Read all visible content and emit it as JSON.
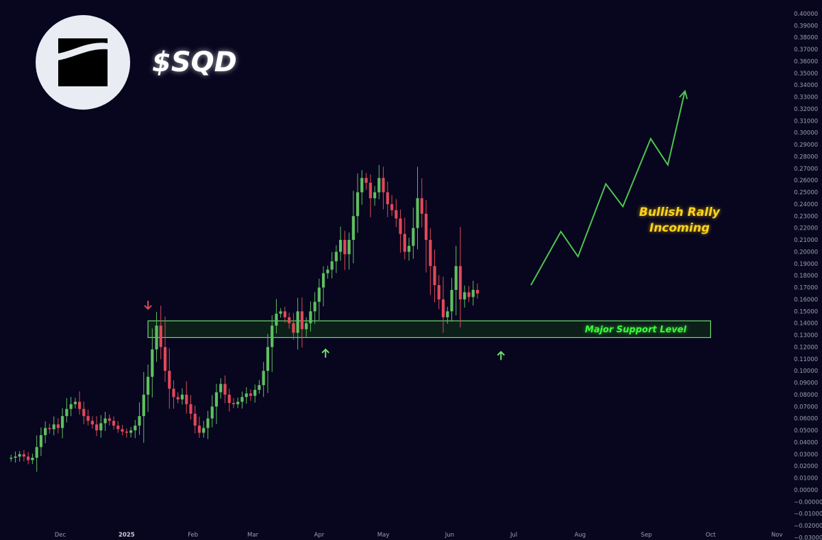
{
  "header": {
    "ticker": "$SQD",
    "logo_icon": "sqd-logo-icon"
  },
  "annotations": {
    "bullish_label_line1": "Bullish Rally",
    "bullish_label_line2": "Incoming",
    "support_label": "Major Support Level"
  },
  "colors": {
    "background": "#07061e",
    "up": "#5fbf61",
    "down": "#e0485a",
    "projection": "#4ec64e",
    "support_border": "#6ee26e",
    "support_fill": "#123516",
    "text_yellow": "#ffd41f",
    "text_green": "#3aff3a",
    "axis_text": "#9aa0b2",
    "logo_circle": "#e9ecf3"
  },
  "chart_data": {
    "type": "candlestick",
    "title": "$SQD",
    "y_axis_position": "right",
    "ylim": [
      -0.03,
      0.4
    ],
    "yticks": [
      "0.40000",
      "0.39000",
      "0.38000",
      "0.37000",
      "0.36000",
      "0.35000",
      "0.34000",
      "0.33000",
      "0.32000",
      "0.31000",
      "0.30000",
      "0.29000",
      "0.28000",
      "0.27000",
      "0.26000",
      "0.25000",
      "0.24000",
      "0.23000",
      "0.22000",
      "0.21000",
      "0.20000",
      "0.19000",
      "0.18000",
      "0.17000",
      "0.16000",
      "0.15000",
      "0.14000",
      "0.13000",
      "0.12000",
      "0.11000",
      "0.10000",
      "0.09000",
      "0.08000",
      "0.07000",
      "0.06000",
      "0.05000",
      "0.04000",
      "0.03000",
      "0.02000",
      "0.01000",
      "0.00000",
      "−0.00000",
      "−0.01000",
      "−0.02000",
      "−0.03000"
    ],
    "xticks": [
      {
        "label": "Dec",
        "date": "2024-12-01",
        "bold": false
      },
      {
        "label": "2025",
        "date": "2025-01-01",
        "bold": true
      },
      {
        "label": "Feb",
        "date": "2025-02-01",
        "bold": false
      },
      {
        "label": "Mar",
        "date": "2025-03-01",
        "bold": false
      },
      {
        "label": "Apr",
        "date": "2025-04-01",
        "bold": false
      },
      {
        "label": "May",
        "date": "2025-05-01",
        "bold": false
      },
      {
        "label": "Jun",
        "date": "2025-06-01",
        "bold": false
      },
      {
        "label": "Jul",
        "date": "2025-07-01",
        "bold": false
      },
      {
        "label": "Aug",
        "date": "2025-08-01",
        "bold": false
      },
      {
        "label": "Sep",
        "date": "2025-09-01",
        "bold": false
      },
      {
        "label": "Oct",
        "date": "2025-10-01",
        "bold": false
      },
      {
        "label": "Nov",
        "date": "2025-11-01",
        "bold": false
      }
    ],
    "candles_start_date": "2024-11-08",
    "candle_interval_days": 2,
    "closes": [
      0.027,
      0.028,
      0.03,
      0.028,
      0.025,
      0.027,
      0.036,
      0.046,
      0.052,
      0.051,
      0.055,
      0.052,
      0.062,
      0.068,
      0.072,
      0.074,
      0.068,
      0.062,
      0.058,
      0.055,
      0.05,
      0.056,
      0.06,
      0.058,
      0.054,
      0.051,
      0.049,
      0.048,
      0.05,
      0.054,
      0.062,
      0.08,
      0.095,
      0.118,
      0.138,
      0.12,
      0.1,
      0.085,
      0.078,
      0.076,
      0.08,
      0.072,
      0.064,
      0.054,
      0.048,
      0.052,
      0.06,
      0.07,
      0.082,
      0.089,
      0.08,
      0.073,
      0.072,
      0.074,
      0.078,
      0.081,
      0.079,
      0.084,
      0.088,
      0.1,
      0.12,
      0.138,
      0.148,
      0.15,
      0.145,
      0.14,
      0.132,
      0.15,
      0.135,
      0.14,
      0.15,
      0.158,
      0.17,
      0.182,
      0.185,
      0.192,
      0.2,
      0.21,
      0.198,
      0.21,
      0.23,
      0.25,
      0.262,
      0.258,
      0.245,
      0.25,
      0.262,
      0.25,
      0.24,
      0.235,
      0.228,
      0.215,
      0.2,
      0.205,
      0.22,
      0.245,
      0.232,
      0.21,
      0.188,
      0.172,
      0.16,
      0.145,
      0.15,
      0.168,
      0.188,
      0.16,
      0.166,
      0.162,
      0.168,
      0.165
    ],
    "support_zone": {
      "low": 0.128,
      "high": 0.142,
      "from_date": "2025-01-11",
      "to_date": "2025-10-01",
      "label": "Major Support Level"
    },
    "projection": {
      "label": "Bullish Rally Incoming",
      "points": [
        {
          "date": "2025-07-09",
          "value": 0.172
        },
        {
          "date": "2025-07-23",
          "value": 0.217
        },
        {
          "date": "2025-07-31",
          "value": 0.196
        },
        {
          "date": "2025-08-13",
          "value": 0.257
        },
        {
          "date": "2025-08-21",
          "value": 0.238
        },
        {
          "date": "2025-09-03",
          "value": 0.295
        },
        {
          "date": "2025-09-11",
          "value": 0.273
        },
        {
          "date": "2025-09-19",
          "value": 0.335
        }
      ]
    },
    "markers": [
      {
        "type": "down-arrow",
        "date": "2025-01-11",
        "value": 0.152,
        "color": "#e0485a"
      },
      {
        "type": "up-arrow",
        "date": "2025-04-04",
        "value": 0.118,
        "color": "#6ee26e"
      },
      {
        "type": "up-arrow",
        "date": "2025-06-25",
        "value": 0.116,
        "color": "#6ee26e"
      }
    ]
  }
}
